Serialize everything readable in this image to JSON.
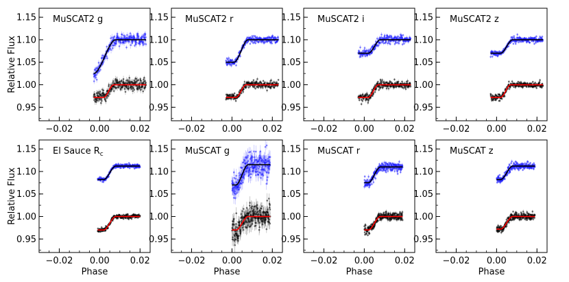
{
  "figure": {
    "ylabel": "Relative Flux",
    "xlabel": "Phase"
  },
  "chart_data": [
    {
      "type": "scatter",
      "title": "MuSCAT2 g",
      "title_sub": "",
      "xlim": [
        -0.03,
        0.025
      ],
      "ylim": [
        0.92,
        1.17
      ],
      "x_ticks": [
        -0.02,
        0.0,
        0.02
      ],
      "x_tick_labels": [
        "−0.02",
        "0.00",
        "0.02"
      ],
      "y_ticks": [
        0.95,
        1.0,
        1.05,
        1.1,
        1.15
      ],
      "y_tick_labels": [
        "0.95",
        "1.00",
        "1.05",
        "1.10",
        "1.15"
      ],
      "series": [
        {
          "name": "blue",
          "color": "#1f1fff",
          "x_range": [
            -0.003,
            0.023
          ],
          "base": 1.025,
          "depth": 0.075,
          "sigma": 0.012,
          "ingress": [
            -0.003,
            0.008
          ]
        },
        {
          "name": "black",
          "color": "#000000",
          "x_range": [
            -0.003,
            0.023
          ],
          "base": 0.972,
          "depth": 0.028,
          "sigma": 0.012,
          "ingress": [
            0.002,
            0.007
          ]
        }
      ]
    },
    {
      "type": "scatter",
      "title": "MuSCAT2 r",
      "title_sub": "",
      "xlim": [
        -0.03,
        0.025
      ],
      "ylim": [
        0.92,
        1.17
      ],
      "x_ticks": [
        -0.02,
        0.0,
        0.02
      ],
      "x_tick_labels": [
        "−0.02",
        "0.00",
        "0.02"
      ],
      "y_ticks": [
        0.95,
        1.0,
        1.05,
        1.1,
        1.15
      ],
      "y_tick_labels": [
        "0.95",
        "1.00",
        "1.05",
        "1.10",
        "1.15"
      ],
      "series": [
        {
          "name": "blue",
          "color": "#1f1fff",
          "x_range": [
            -0.003,
            0.023
          ],
          "base": 1.05,
          "depth": 0.05,
          "sigma": 0.007,
          "ingress": [
            0.001,
            0.008
          ]
        },
        {
          "name": "black",
          "color": "#000000",
          "x_range": [
            -0.003,
            0.023
          ],
          "base": 0.972,
          "depth": 0.028,
          "sigma": 0.007,
          "ingress": [
            0.002,
            0.007
          ]
        }
      ]
    },
    {
      "type": "scatter",
      "title": "MuSCAT2 i",
      "title_sub": "",
      "xlim": [
        -0.03,
        0.025
      ],
      "ylim": [
        0.92,
        1.17
      ],
      "x_ticks": [
        -0.02,
        0.0,
        0.02
      ],
      "x_tick_labels": [
        "−0.02",
        "0.00",
        "0.02"
      ],
      "y_ticks": [
        0.95,
        1.0,
        1.05,
        1.1,
        1.15
      ],
      "y_tick_labels": [
        "0.95",
        "1.00",
        "1.05",
        "1.10",
        "1.15"
      ],
      "series": [
        {
          "name": "blue",
          "color": "#1f1fff",
          "x_range": [
            -0.003,
            0.023
          ],
          "base": 1.07,
          "depth": 0.03,
          "sigma": 0.008,
          "ingress": [
            0.002,
            0.008
          ]
        },
        {
          "name": "black",
          "color": "#000000",
          "x_range": [
            -0.003,
            0.023
          ],
          "base": 0.972,
          "depth": 0.028,
          "sigma": 0.008,
          "ingress": [
            0.002,
            0.007
          ]
        }
      ]
    },
    {
      "type": "scatter",
      "title": "MuSCAT2 z",
      "title_sub": "",
      "xlim": [
        -0.03,
        0.025
      ],
      "ylim": [
        0.92,
        1.17
      ],
      "x_ticks": [
        -0.02,
        0.0,
        0.02
      ],
      "x_tick_labels": [
        "−0.02",
        "0.00",
        "0.02"
      ],
      "y_ticks": [
        0.95,
        1.0,
        1.05,
        1.1,
        1.15
      ],
      "y_tick_labels": [
        "0.95",
        "1.00",
        "1.05",
        "1.10",
        "1.15"
      ],
      "series": [
        {
          "name": "blue",
          "color": "#1f1fff",
          "x_range": [
            -0.003,
            0.023
          ],
          "base": 1.07,
          "depth": 0.03,
          "sigma": 0.006,
          "ingress": [
            0.002,
            0.008
          ]
        },
        {
          "name": "black",
          "color": "#000000",
          "x_range": [
            -0.003,
            0.023
          ],
          "base": 0.972,
          "depth": 0.028,
          "sigma": 0.006,
          "ingress": [
            0.002,
            0.007
          ]
        }
      ]
    },
    {
      "type": "scatter",
      "title": "El Sauce R",
      "title_sub": "c",
      "xlim": [
        -0.03,
        0.025
      ],
      "ylim": [
        0.92,
        1.17
      ],
      "x_ticks": [
        -0.02,
        0.0,
        0.02
      ],
      "x_tick_labels": [
        "−0.02",
        "0.00",
        "0.02"
      ],
      "y_ticks": [
        0.95,
        1.0,
        1.05,
        1.1,
        1.15
      ],
      "y_tick_labels": [
        "0.95",
        "1.00",
        "1.05",
        "1.10",
        "1.15"
      ],
      "series": [
        {
          "name": "blue",
          "color": "#1f1fff",
          "x_range": [
            -0.001,
            0.02
          ],
          "base": 1.082,
          "depth": 0.03,
          "sigma": 0.004,
          "ingress": [
            0.002,
            0.008
          ]
        },
        {
          "name": "black",
          "color": "#000000",
          "x_range": [
            -0.001,
            0.02
          ],
          "base": 0.97,
          "depth": 0.03,
          "sigma": 0.004,
          "ingress": [
            0.002,
            0.008
          ]
        }
      ]
    },
    {
      "type": "scatter",
      "title": "MuSCAT g",
      "title_sub": "",
      "xlim": [
        -0.03,
        0.025
      ],
      "ylim": [
        0.92,
        1.17
      ],
      "x_ticks": [
        -0.02,
        0.0,
        0.02
      ],
      "x_tick_labels": [
        "−0.02",
        "0.00",
        "0.02"
      ],
      "y_ticks": [
        0.95,
        1.0,
        1.05,
        1.1,
        1.15
      ],
      "y_tick_labels": [
        "0.95",
        "1.00",
        "1.05",
        "1.10",
        "1.15"
      ],
      "series": [
        {
          "name": "blue",
          "color": "#1f1fff",
          "x_range": [
            0.0,
            0.019
          ],
          "base": 1.07,
          "depth": 0.045,
          "sigma": 0.025,
          "ingress": [
            0.002,
            0.008
          ]
        },
        {
          "name": "black",
          "color": "#000000",
          "x_range": [
            0.0,
            0.019
          ],
          "base": 0.97,
          "depth": 0.03,
          "sigma": 0.025,
          "ingress": [
            0.002,
            0.008
          ]
        }
      ]
    },
    {
      "type": "scatter",
      "title": "MuSCAT r",
      "title_sub": "",
      "xlim": [
        -0.03,
        0.025
      ],
      "ylim": [
        0.92,
        1.17
      ],
      "x_ticks": [
        -0.02,
        0.0,
        0.02
      ],
      "x_tick_labels": [
        "−0.02",
        "0.00",
        "0.02"
      ],
      "y_ticks": [
        0.95,
        1.0,
        1.05,
        1.1,
        1.15
      ],
      "y_tick_labels": [
        "0.95",
        "1.00",
        "1.05",
        "1.10",
        "1.15"
      ],
      "series": [
        {
          "name": "blue",
          "color": "#1f1fff",
          "x_range": [
            0.0,
            0.019
          ],
          "base": 1.075,
          "depth": 0.035,
          "sigma": 0.008,
          "ingress": [
            0.002,
            0.008
          ]
        },
        {
          "name": "black",
          "color": "#000000",
          "x_range": [
            0.0,
            0.019
          ],
          "base": 0.97,
          "depth": 0.03,
          "sigma": 0.008,
          "ingress": [
            0.002,
            0.008
          ]
        }
      ]
    },
    {
      "type": "scatter",
      "title": "MuSCAT z",
      "title_sub": "",
      "xlim": [
        -0.03,
        0.025
      ],
      "ylim": [
        0.92,
        1.17
      ],
      "x_ticks": [
        -0.02,
        0.0,
        0.02
      ],
      "x_tick_labels": [
        "−0.02",
        "0.00",
        "0.02"
      ],
      "y_ticks": [
        0.95,
        1.0,
        1.05,
        1.1,
        1.15
      ],
      "y_tick_labels": [
        "0.95",
        "1.00",
        "1.05",
        "1.10",
        "1.15"
      ],
      "series": [
        {
          "name": "blue",
          "color": "#1f1fff",
          "x_range": [
            0.0,
            0.019
          ],
          "base": 1.082,
          "depth": 0.03,
          "sigma": 0.007,
          "ingress": [
            0.002,
            0.008
          ]
        },
        {
          "name": "black",
          "color": "#000000",
          "x_range": [
            0.0,
            0.019
          ],
          "base": 0.972,
          "depth": 0.028,
          "sigma": 0.007,
          "ingress": [
            0.002,
            0.008
          ]
        }
      ]
    }
  ],
  "colors": {
    "blue_points": "#1f1fff",
    "black_points": "#000000",
    "model_blue": "#000000",
    "model_black": "#ff0000"
  }
}
